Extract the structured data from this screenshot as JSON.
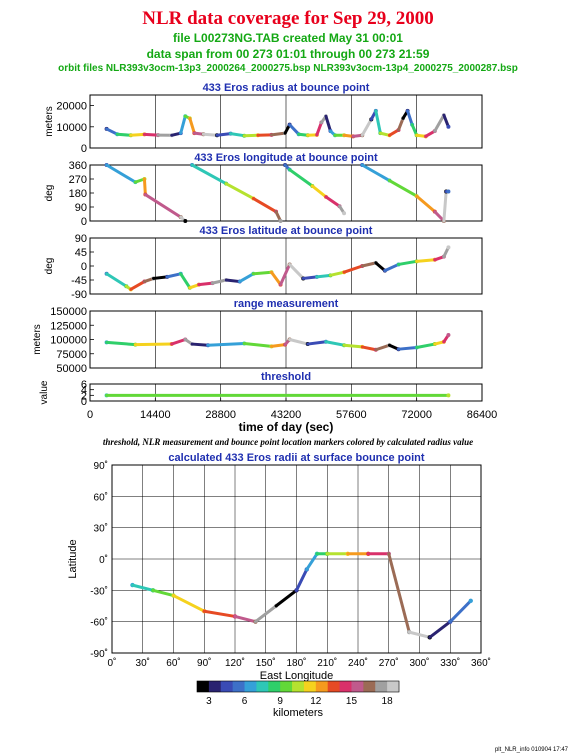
{
  "header": {
    "title": "NLR data coverage for Sep 29, 2000",
    "file_line": "file L00273NG.TAB created May 31 00:01",
    "span_line": "data span from 00 273 01:01 through 00 273 21:59",
    "orbit_line": "orbit files NLR393v3ocm-13p3_2000264_2000275.bsp NLR393v3ocm-13p4_2000275_2000287.bsp"
  },
  "caption": "threshold, NLR measurement and bounce point location markers colored by calculated radius value",
  "footer": "plt_NLR_info 010904 17:47",
  "colors": {
    "title": "#e8001c",
    "subtitle": "#14a814",
    "panel_title": "#1f2fb0",
    "colormap": [
      "#000000",
      "#2a2370",
      "#3a4bb5",
      "#3d70c8",
      "#35a0d8",
      "#2ec7b6",
      "#2fcf6a",
      "#62d838",
      "#b5e22f",
      "#f5d21e",
      "#f59a1e",
      "#e64a24",
      "#d9306a",
      "#c05a8c",
      "#9b6b55",
      "#a0a0a0",
      "#c8c8c8"
    ]
  },
  "chart_data": [
    {
      "type": "scatter",
      "title": "433 Eros radius at bounce point",
      "xlabel": "",
      "ylabel": "meters",
      "yticks": [
        "0",
        "10000",
        "20000"
      ],
      "ylim": [
        0,
        25000
      ],
      "xlim": [
        0,
        86400
      ],
      "series": [
        {
          "x": [
            3660,
            6000,
            9000,
            12000,
            15000,
            18000,
            20000,
            21000,
            22000,
            23000,
            25000,
            28000,
            31000,
            34000,
            37000,
            40000,
            43000,
            44000,
            46000,
            48000,
            50000,
            51000,
            52000,
            53000,
            54000,
            56000,
            58000,
            60000,
            62000,
            63000,
            64000,
            66000,
            68000,
            69000,
            70000,
            71000,
            72000,
            74000,
            76000,
            78000,
            79000
          ],
          "y": [
            9000,
            6500,
            6000,
            6400,
            6100,
            6000,
            7000,
            15000,
            14000,
            7000,
            6500,
            6000,
            6800,
            5800,
            6000,
            6200,
            7000,
            11000,
            6500,
            6000,
            6200,
            12000,
            15000,
            8000,
            6000,
            6000,
            5500,
            6000,
            13500,
            17500,
            7000,
            6000,
            8500,
            14000,
            17500,
            11000,
            6000,
            5500,
            8000,
            15500,
            10000
          ]
        }
      ]
    },
    {
      "type": "scatter",
      "title": "433 Eros longitude at bounce point",
      "xlabel": "",
      "ylabel": "deg",
      "yticks": [
        "0",
        "90",
        "180",
        "270",
        "360"
      ],
      "ylim": [
        0,
        360
      ],
      "xlim": [
        0,
        86400
      ],
      "series": [
        {
          "x": [
            3660,
            10000,
            12000,
            12200,
            20000,
            21000,
            22500,
            30000,
            36000,
            41000,
            42000,
            43000,
            44000,
            49000,
            52000,
            55000,
            56000,
            60000,
            66000,
            72000,
            76000,
            78000,
            78500,
            79000
          ],
          "y": [
            360,
            250,
            270,
            170,
            25,
            0,
            360,
            240,
            145,
            60,
            0,
            360,
            330,
            225,
            155,
            95,
            50,
            360,
            260,
            160,
            60,
            0,
            190,
            190
          ]
        }
      ]
    },
    {
      "type": "scatter",
      "title": "433 Eros latitude at bounce point",
      "xlabel": "",
      "ylabel": "deg",
      "yticks": [
        "-90",
        "-45",
        "0",
        "45",
        "90"
      ],
      "ylim": [
        -90,
        90
      ],
      "xlim": [
        0,
        86400
      ],
      "series": [
        {
          "x": [
            3660,
            8000,
            9000,
            12000,
            14000,
            17000,
            20000,
            22000,
            24000,
            27000,
            30000,
            33000,
            36000,
            40000,
            42000,
            44000,
            47000,
            50000,
            53000,
            56000,
            60000,
            63000,
            65000,
            68000,
            72000,
            76000,
            78000,
            79000
          ],
          "y": [
            -25,
            -65,
            -75,
            -50,
            -40,
            -35,
            -25,
            -70,
            -60,
            -55,
            -45,
            -50,
            -25,
            -20,
            -60,
            5,
            -40,
            -35,
            -30,
            -20,
            0,
            10,
            -15,
            5,
            15,
            20,
            30,
            60
          ]
        }
      ]
    },
    {
      "type": "scatter",
      "title": "range measurement",
      "xlabel": "",
      "ylabel": "meters",
      "yticks": [
        "50000",
        "75000",
        "100000",
        "125000",
        "150000"
      ],
      "ylim": [
        50000,
        150000
      ],
      "xlim": [
        0,
        86400
      ],
      "series": [
        {
          "x": [
            3660,
            10000,
            18000,
            21000,
            22500,
            26000,
            34000,
            40000,
            43000,
            44000,
            48000,
            52000,
            56000,
            60000,
            63000,
            66000,
            68000,
            72000,
            76000,
            78000,
            79000
          ],
          "y": [
            95000,
            91000,
            92000,
            100000,
            92000,
            90000,
            93000,
            88000,
            91000,
            100000,
            92000,
            96000,
            90000,
            87000,
            82000,
            90000,
            83000,
            86000,
            92000,
            96000,
            108000
          ]
        }
      ]
    },
    {
      "type": "scatter",
      "title": "threshold",
      "xlabel": "time of day (sec)",
      "ylabel": "value",
      "yticks": [
        "0",
        "2",
        "4",
        "6"
      ],
      "xticks": [
        "0",
        "14400",
        "28800",
        "43200",
        "57600",
        "72000",
        "86400"
      ],
      "ylim": [
        0,
        6
      ],
      "xlim": [
        0,
        86400
      ],
      "series": [
        {
          "x": [
            3660,
            79000
          ],
          "y": [
            2,
            2
          ]
        }
      ]
    },
    {
      "type": "scatter",
      "title": "calculated 433 Eros radii at surface bounce point",
      "xlabel": "East Longitude",
      "ylabel": "Latitude",
      "xticks": [
        "0˚",
        "30˚",
        "60˚",
        "90˚",
        "120˚",
        "150˚",
        "180˚",
        "210˚",
        "240˚",
        "270˚",
        "300˚",
        "330˚",
        "360˚"
      ],
      "yticks": [
        "90˚",
        "60˚",
        "30˚",
        "0˚",
        "-30˚",
        "-60˚",
        "-90˚"
      ],
      "xlim": [
        0,
        360
      ],
      "ylim": [
        -90,
        90
      ],
      "colorbar_label": "kilometers",
      "colorbar_ticks": [
        "3",
        "6",
        "9",
        "12",
        "15",
        "18"
      ],
      "series": [
        {
          "x": [
            20,
            40,
            60,
            90,
            120,
            140,
            160,
            180,
            190,
            200,
            210,
            230,
            250,
            270,
            290,
            310,
            330,
            350
          ],
          "y": [
            -25,
            -30,
            -35,
            -50,
            -55,
            -60,
            -45,
            -30,
            -10,
            5,
            5,
            5,
            5,
            5,
            -70,
            -75,
            -60,
            -40
          ]
        }
      ]
    }
  ]
}
